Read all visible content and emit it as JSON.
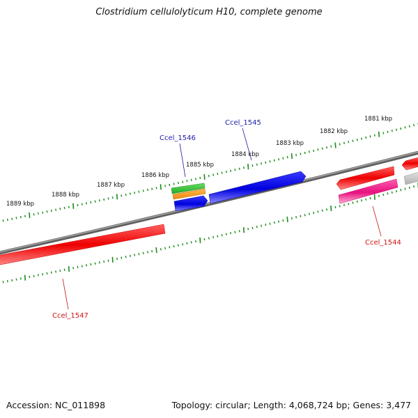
{
  "title": "Clostridium cellulolyticum H10, complete genome",
  "footer": {
    "accession": "Accession: NC_011898",
    "summary": "Topology: circular; Length: 4,068,724 bp; Genes: 3,477"
  },
  "scale_labels": [
    "1889 kbp",
    "1888 kbp",
    "1887 kbp",
    "1886 kbp",
    "1885 kbp",
    "1884 kbp",
    "1883 kbp",
    "1882 kbp",
    "1881 kbp"
  ],
  "genes": [
    {
      "label": "Ccel_1547",
      "strand": "minus",
      "color": "#ff0000"
    },
    {
      "label": "Ccel_1546",
      "strand": "plus",
      "color": "#0000ee"
    },
    {
      "label": "Ccel_1545",
      "strand": "plus",
      "color": "#0000ee"
    },
    {
      "label": "Ccel_1544",
      "strand": "minus",
      "color": "#ff1493"
    }
  ],
  "colors": {
    "backbone": "#8a8a8a",
    "ticks": "#1a8a1a",
    "plus_label": "#1a1aa8",
    "minus_label": "#cc1111",
    "green_feature": "#33bb33",
    "orange_feature": "#ff9922",
    "grey_feature": "#c8c8c8"
  }
}
